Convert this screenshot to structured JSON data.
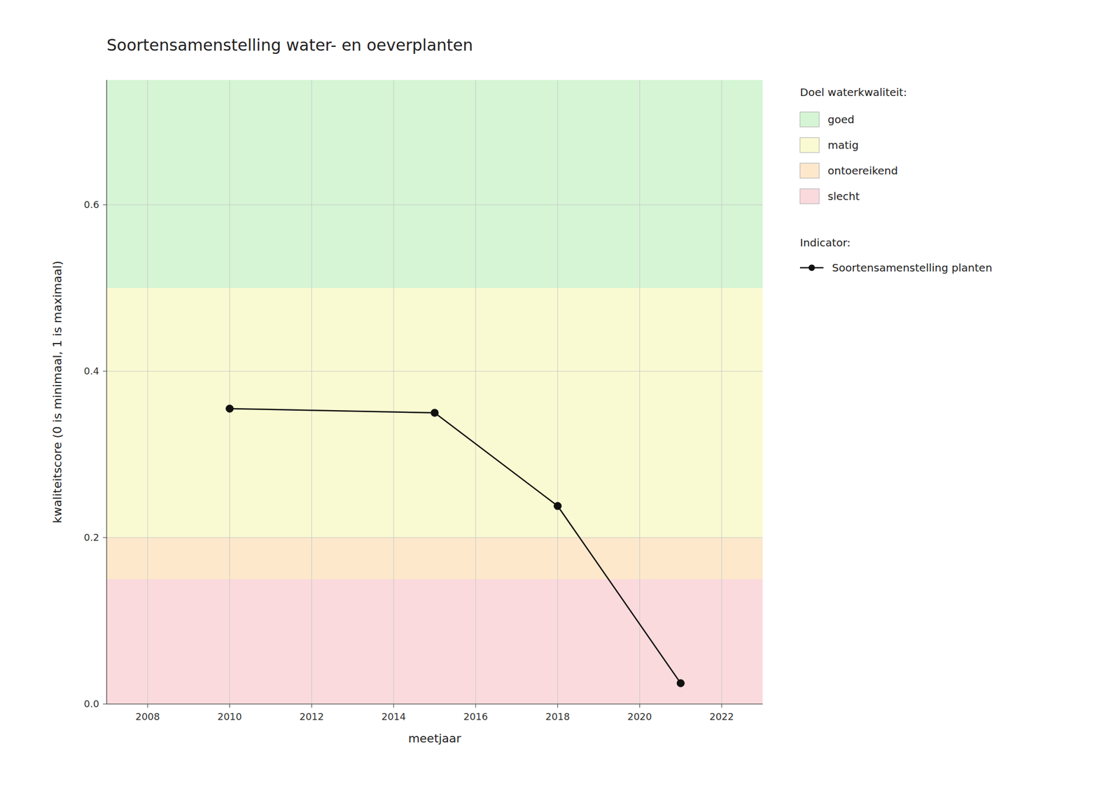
{
  "chart_data": {
    "type": "line",
    "title": "Soortensamenstelling water- en oeverplanten",
    "x_label": "meetjaar",
    "y_label": "kwaliteitscore (0 is minimaal, 1 is maximaal)",
    "x": [
      2010,
      2015,
      2018,
      2021
    ],
    "series": [
      {
        "name": "Soortensamenstelling planten",
        "color": "#111111",
        "marker": "circle",
        "line_style": "solid",
        "values": [
          0.355,
          0.35,
          0.238,
          0.025
        ]
      }
    ],
    "xlim": [
      2007,
      2023
    ],
    "ylim": [
      0,
      0.75
    ],
    "xticks": [
      2008,
      2010,
      2012,
      2014,
      2016,
      2018,
      2020,
      2022
    ],
    "yticks": [
      {
        "value": 0.0,
        "label": "0.0"
      },
      0.2,
      0.4,
      0.6
    ],
    "grid": true,
    "legend": "right",
    "bands_title": "Doel waterkwaliteit:",
    "legend_title": "Indicator:",
    "bands": [
      {
        "label": "goed",
        "color": "#d5f5d5",
        "from": 0.5,
        "to": 0.75
      },
      {
        "label": "matig",
        "color": "#fafad2",
        "from": 0.2,
        "to": 0.5
      },
      {
        "label": "ontoereikend",
        "color": "#fde8cc",
        "from": 0.15,
        "to": 0.2
      },
      {
        "label": "slecht",
        "color": "#fadadd",
        "from": 0.0,
        "to": 0.15
      }
    ]
  }
}
